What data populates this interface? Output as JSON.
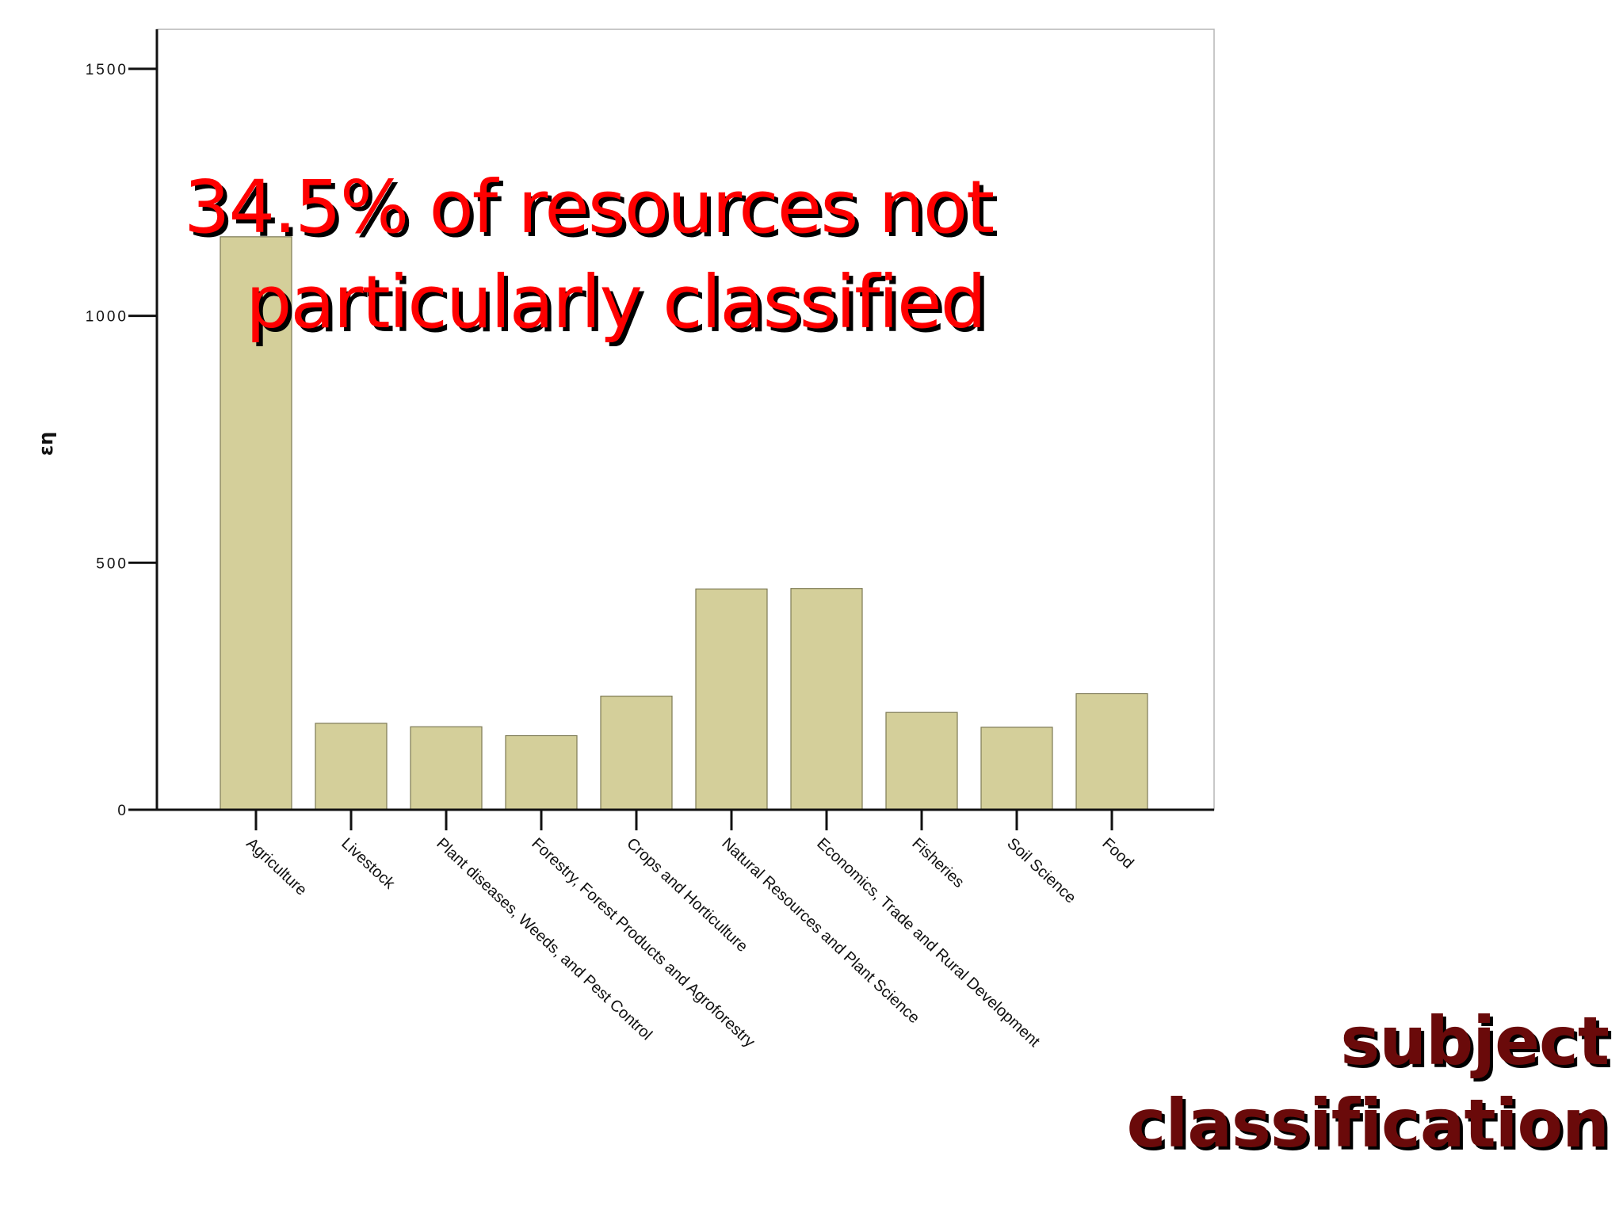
{
  "slide": {
    "title_line1": "subject",
    "title_line2": "classification",
    "callout_line1": "34.5% of resources not",
    "callout_line2": "particularly classified"
  },
  "colors": {
    "bar_fill": "#d4cf9a",
    "bar_stroke": "#7d7a55",
    "callout": "#ff0000",
    "title": "#6a0a0a",
    "axis": "#111111"
  },
  "chart_data": {
    "type": "bar",
    "categories": [
      "Agriculture",
      "Livestock",
      "Plant diseases, Weeds, and Pest Control",
      "Forestry, Forest Products and Agroforestry",
      "Crops and Horticulture",
      "Natural Resources and Plant Science",
      "Economics, Trade and Rural Development",
      "Fisheries",
      "Soil Science",
      "Food"
    ],
    "values": [
      1160,
      175,
      168,
      150,
      230,
      447,
      448,
      197,
      167,
      235
    ],
    "ylabel": "εη",
    "ylim": [
      0,
      1580
    ],
    "yticks": [
      0,
      500,
      1000,
      1500
    ],
    "ytick_labels": [
      "0",
      "500",
      "1000",
      "1500"
    ],
    "grid": false
  }
}
